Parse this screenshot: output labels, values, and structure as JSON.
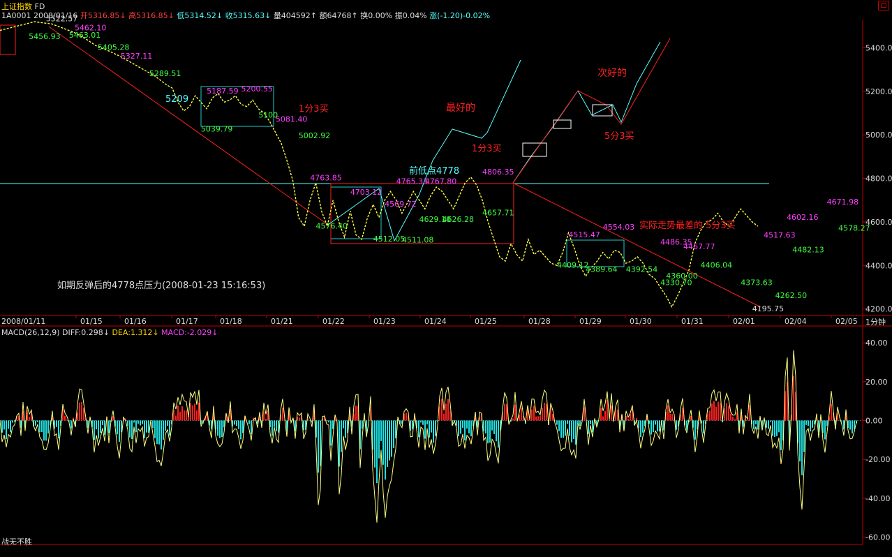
{
  "header": {
    "name": "上证指数",
    "suffix": "FD",
    "code": "1A0001",
    "date": "2008/01/16",
    "open": "开5316.85",
    "high": "高5316.85",
    "low": "低5314.52",
    "close": "收5315.63",
    "volume": "量404592",
    "amount": "额64768",
    "turnover": "换0.00%",
    "amplitude": "振0.04%",
    "change": "涨(-1.20)-0.02%"
  },
  "macd_header": {
    "label": "MACD(26,12,9)",
    "diff": "DIFF:0.298",
    "dea": "DEA:1.312",
    "macd": "MACD:-2.029"
  },
  "period": "1分钟",
  "footer": "战无不胜",
  "colors": {
    "bg": "#000000",
    "price": "#ffff40",
    "up": "#ff2020",
    "down": "#20e0e0",
    "label_high": "#ff40ff",
    "label_low": "#40ff40",
    "axis": "#c00000"
  },
  "annotations": {
    "best": "最好的",
    "second": "次好的",
    "buy1": "1分3买",
    "buy1b": "1分3买",
    "buy5": "5分3买",
    "worst": "实际走势最差的 5分3买",
    "prev_low": "前低点4778",
    "pressure": "如期反弹后的4778点压力(2008-01-23 15:16:53)",
    "p5209": "5209"
  },
  "chart_data": {
    "type": "line",
    "price_axis": {
      "ticks": [
        5400,
        5200,
        5000,
        4800,
        4600,
        4400,
        4200
      ],
      "labels": [
        "5400.00",
        "5200.00",
        "5000.00",
        "4800.00",
        "4600.00",
        "4400.00",
        "4200.00"
      ],
      "min": 4170,
      "max": 5530
    },
    "macd_axis": {
      "ticks": [
        40,
        20,
        0,
        -20,
        -40,
        -60
      ],
      "labels": [
        "40.00",
        "20.00",
        "0.00",
        "-20.00",
        "-40.00",
        "-60.00"
      ],
      "min": -62,
      "max": 44
    },
    "x_labels": [
      "2008/01/11",
      "01/15",
      "01/16",
      "01/17",
      "01/18",
      "01/21",
      "01/22",
      "01/23",
      "01/24",
      "01/25",
      "01/28",
      "01/29",
      "01/30",
      "01/31",
      "02/01",
      "02/04",
      "02/05"
    ],
    "reference_level": 4778,
    "price_path": [
      [
        0,
        5480
      ],
      [
        3,
        5500
      ],
      [
        6,
        5520
      ],
      [
        9,
        5510
      ],
      [
        11,
        5490
      ],
      [
        13,
        5470
      ],
      [
        15,
        5440
      ],
      [
        17,
        5405
      ],
      [
        19,
        5385
      ],
      [
        21,
        5360
      ],
      [
        23,
        5330
      ],
      [
        25,
        5300
      ],
      [
        27,
        5270
      ],
      [
        29,
        5230
      ],
      [
        30,
        5215
      ],
      [
        31,
        5150
      ],
      [
        32,
        5110
      ],
      [
        33,
        5130
      ],
      [
        34,
        5180
      ],
      [
        35,
        5150
      ],
      [
        36,
        5120
      ],
      [
        37,
        5170
      ],
      [
        38,
        5190
      ],
      [
        39,
        5150
      ],
      [
        40,
        5160
      ],
      [
        41,
        5180
      ],
      [
        42,
        5140
      ],
      [
        43,
        5130
      ],
      [
        44,
        5160
      ],
      [
        45,
        5120
      ],
      [
        46,
        5100
      ],
      [
        47,
        5060
      ],
      [
        48,
        5010
      ],
      [
        49,
        4960
      ],
      [
        50,
        4880
      ],
      [
        51,
        4790
      ],
      [
        52,
        4620
      ],
      [
        53,
        4580
      ],
      [
        54,
        4700
      ],
      [
        55,
        4780
      ],
      [
        56,
        4650
      ],
      [
        57,
        4580
      ],
      [
        58,
        4700
      ],
      [
        59,
        4600
      ],
      [
        60,
        4530
      ],
      [
        61,
        4650
      ],
      [
        62,
        4540
      ],
      [
        63,
        4520
      ],
      [
        64,
        4620
      ],
      [
        65,
        4680
      ],
      [
        66,
        4620
      ],
      [
        67,
        4700
      ],
      [
        68,
        4740
      ],
      [
        69,
        4700
      ],
      [
        70,
        4640
      ],
      [
        71,
        4690
      ],
      [
        72,
        4740
      ],
      [
        73,
        4700
      ],
      [
        74,
        4660
      ],
      [
        75,
        4720
      ],
      [
        76,
        4760
      ],
      [
        77,
        4740
      ],
      [
        78,
        4700
      ],
      [
        79,
        4660
      ],
      [
        80,
        4720
      ],
      [
        81,
        4780
      ],
      [
        82,
        4806
      ],
      [
        83,
        4770
      ],
      [
        84,
        4700
      ],
      [
        85,
        4600
      ],
      [
        86,
        4520
      ],
      [
        87,
        4440
      ],
      [
        88,
        4420
      ],
      [
        89,
        4500
      ],
      [
        90,
        4450
      ],
      [
        91,
        4420
      ],
      [
        92,
        4520
      ],
      [
        93,
        4450
      ],
      [
        94,
        4470
      ],
      [
        95,
        4440
      ],
      [
        96,
        4410
      ],
      [
        97,
        4400
      ],
      [
        98,
        4460
      ],
      [
        99,
        4550
      ],
      [
        100,
        4480
      ],
      [
        101,
        4400
      ],
      [
        102,
        4350
      ],
      [
        103,
        4390
      ],
      [
        104,
        4420
      ],
      [
        105,
        4460
      ],
      [
        106,
        4430
      ],
      [
        107,
        4470
      ],
      [
        108,
        4460
      ],
      [
        109,
        4410
      ],
      [
        110,
        4420
      ],
      [
        111,
        4440
      ],
      [
        112,
        4410
      ],
      [
        113,
        4360
      ],
      [
        114,
        4340
      ],
      [
        115,
        4300
      ],
      [
        116,
        4260
      ],
      [
        117,
        4210
      ],
      [
        118,
        4260
      ],
      [
        119,
        4320
      ],
      [
        120,
        4380
      ],
      [
        121,
        4500
      ],
      [
        122,
        4560
      ],
      [
        123,
        4600
      ],
      [
        124,
        4610
      ],
      [
        125,
        4640
      ],
      [
        126,
        4600
      ],
      [
        127,
        4580
      ],
      [
        128,
        4620
      ],
      [
        129,
        4660
      ],
      [
        130,
        4630
      ],
      [
        131,
        4600
      ],
      [
        132,
        4580
      ]
    ],
    "labels": [
      {
        "text": "5522.57",
        "x": 8,
        "y": 5522,
        "c": "w"
      },
      {
        "text": "5456.93",
        "x": 5,
        "y": 5440,
        "c": "g"
      },
      {
        "text": "5463.01",
        "x": 12,
        "y": 5447,
        "c": "g"
      },
      {
        "text": "5462.10",
        "x": 13,
        "y": 5480,
        "c": "m"
      },
      {
        "text": "5405.28",
        "x": 17,
        "y": 5390,
        "c": "g"
      },
      {
        "text": "5327.11",
        "x": 21,
        "y": 5350,
        "c": "m"
      },
      {
        "text": "5289.51",
        "x": 26,
        "y": 5270,
        "c": "g"
      },
      {
        "text": "5187.59",
        "x": 36,
        "y": 5190,
        "c": "m"
      },
      {
        "text": "5200.55",
        "x": 42,
        "y": 5200,
        "c": "m"
      },
      {
        "text": "5100",
        "x": 45,
        "y": 5080,
        "c": "g"
      },
      {
        "text": "5039.79",
        "x": 35,
        "y": 5015,
        "c": "g"
      },
      {
        "text": "5081.40",
        "x": 48,
        "y": 5060,
        "c": "m"
      },
      {
        "text": "5002.92",
        "x": 52,
        "y": 4985,
        "c": "g"
      },
      {
        "text": "4763.85",
        "x": 54,
        "y": 4790,
        "c": "m"
      },
      {
        "text": "4703.12",
        "x": 61,
        "y": 4725,
        "c": "m"
      },
      {
        "text": "4576.40",
        "x": 55,
        "y": 4570,
        "c": "g"
      },
      {
        "text": "4569.72",
        "x": 67,
        "y": 4670,
        "c": "m"
      },
      {
        "text": "4512.05",
        "x": 65,
        "y": 4510,
        "c": "g"
      },
      {
        "text": "4511.08",
        "x": 70,
        "y": 4505,
        "c": "g"
      },
      {
        "text": "4765.33",
        "x": 69,
        "y": 4775,
        "c": "m"
      },
      {
        "text": "4767.80",
        "x": 74,
        "y": 4775,
        "c": "m"
      },
      {
        "text": "4629.10",
        "x": 73,
        "y": 4600,
        "c": "g"
      },
      {
        "text": "4626.28",
        "x": 77,
        "y": 4600,
        "c": "g"
      },
      {
        "text": "4657.71",
        "x": 84,
        "y": 4630,
        "c": "g"
      },
      {
        "text": "4806.35",
        "x": 84,
        "y": 4818,
        "c": "m"
      },
      {
        "text": "4515.47",
        "x": 99,
        "y": 4530,
        "c": "m"
      },
      {
        "text": "4554.03",
        "x": 105,
        "y": 4565,
        "c": "m"
      },
      {
        "text": "4486.35",
        "x": 115,
        "y": 4495,
        "c": "m"
      },
      {
        "text": "4467.77",
        "x": 119,
        "y": 4475,
        "c": "m"
      },
      {
        "text": "4409.12",
        "x": 97,
        "y": 4390,
        "c": "g"
      },
      {
        "text": "4389.64",
        "x": 102,
        "y": 4370,
        "c": "g"
      },
      {
        "text": "4392.54",
        "x": 109,
        "y": 4370,
        "c": "g"
      },
      {
        "text": "4360.00",
        "x": 116,
        "y": 4340,
        "c": "g"
      },
      {
        "text": "4330.70",
        "x": 115,
        "y": 4310,
        "c": "g"
      },
      {
        "text": "4406.04",
        "x": 122,
        "y": 4390,
        "c": "g"
      },
      {
        "text": "4373.63",
        "x": 129,
        "y": 4310,
        "c": "g"
      },
      {
        "text": "4517.63",
        "x": 133,
        "y": 4528,
        "c": "m"
      },
      {
        "text": "4602.16",
        "x": 137,
        "y": 4610,
        "c": "m"
      },
      {
        "text": "4671.98",
        "x": 144,
        "y": 4680,
        "c": "m"
      },
      {
        "text": "4578.27",
        "x": 146,
        "y": 4560,
        "c": "g"
      },
      {
        "text": "4482.13",
        "x": 138,
        "y": 4460,
        "c": "g"
      },
      {
        "text": "4262.50",
        "x": 135,
        "y": 4250,
        "c": "g"
      },
      {
        "text": "4195.75",
        "x": 131,
        "y": 4190,
        "c": "w"
      }
    ]
  }
}
